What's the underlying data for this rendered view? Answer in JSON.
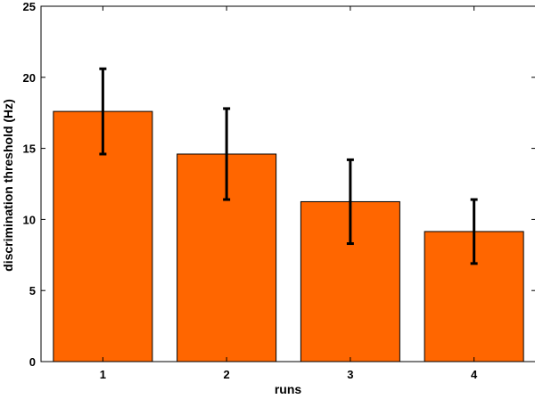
{
  "chart_data": {
    "type": "bar",
    "title": "",
    "xlabel": "runs",
    "ylabel": "discrimination threshold (Hz)",
    "categories": [
      "1",
      "2",
      "3",
      "4"
    ],
    "values": [
      17.6,
      14.6,
      11.25,
      9.15
    ],
    "error_upper": [
      20.6,
      17.8,
      14.2,
      11.4
    ],
    "error_lower": [
      14.6,
      11.4,
      8.3,
      6.9
    ],
    "ylim": [
      0,
      25
    ],
    "yticks": [
      0,
      5,
      10,
      15,
      20,
      25
    ],
    "bar_color": "#ff6600",
    "bar_edge_color": "#000000",
    "error_bar_color": "#000000",
    "grid": false,
    "legend": "none"
  }
}
